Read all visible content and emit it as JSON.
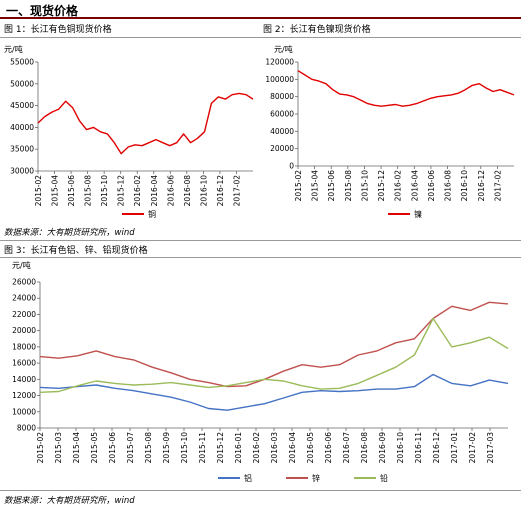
{
  "section_title": "一、现货价格",
  "captions": {
    "fig1": "图 1：长江有色铜现货价格",
    "fig2": "图 2：长江有色镍现货价格",
    "fig3": "图 3：长江有色铝、锌、铅现货价格"
  },
  "source_text": "数据来源：大有期货研究所，wind",
  "chart_data": [
    {
      "type": "line",
      "ylabel": "元/吨",
      "ylim": [
        30000,
        55000
      ],
      "yticks": [
        30000,
        35000,
        40000,
        45000,
        50000,
        55000
      ],
      "x_ticks": [
        "2015-02",
        "2015-04",
        "2015-06",
        "2015-08",
        "2015-10",
        "2015-12",
        "2016-02",
        "2016-04",
        "2016-06",
        "2016-08",
        "2016-10",
        "2016-12",
        "2017-02"
      ],
      "grid": false,
      "legend": "bottom",
      "series": [
        {
          "name": "铜",
          "color": "#e00000",
          "values": [
            41000,
            42500,
            43500,
            44200,
            46000,
            44500,
            41500,
            39500,
            40000,
            39000,
            38500,
            36500,
            34000,
            35500,
            36000,
            35800,
            36500,
            37200,
            36500,
            35800,
            36500,
            38500,
            36500,
            37500,
            39000,
            45500,
            47000,
            46500,
            47500,
            47800,
            47500,
            46500
          ]
        }
      ]
    },
    {
      "type": "line",
      "ylabel": "元/吨",
      "ylim": [
        0,
        120000
      ],
      "yticks": [
        0,
        20000,
        40000,
        60000,
        80000,
        100000,
        120000
      ],
      "x_ticks": [
        "2015-02",
        "2015-04",
        "2015-06",
        "2015-08",
        "2015-10",
        "2015-12",
        "2016-02",
        "2016-04",
        "2016-06",
        "2016-08",
        "2016-10",
        "2016-12",
        "2017-02"
      ],
      "grid": false,
      "legend": "bottom",
      "series": [
        {
          "name": "镍",
          "color": "#e00000",
          "values": [
            110000,
            105000,
            100000,
            98000,
            95000,
            88000,
            83000,
            82000,
            80000,
            76000,
            72000,
            70000,
            69000,
            70000,
            71000,
            69000,
            70000,
            72000,
            75000,
            78000,
            80000,
            81000,
            82000,
            84000,
            88000,
            93000,
            95000,
            90000,
            86000,
            88000,
            85000,
            82000
          ]
        }
      ]
    },
    {
      "type": "line",
      "ylabel": "元/吨",
      "ylim": [
        8000,
        26000
      ],
      "yticks": [
        8000,
        10000,
        12000,
        14000,
        16000,
        18000,
        20000,
        22000,
        24000,
        26000
      ],
      "x_ticks": [
        "2015-02",
        "2015-03",
        "2015-04",
        "2015-05",
        "2015-06",
        "2015-07",
        "2015-08",
        "2015-09",
        "2015-10",
        "2015-11",
        "2015-12",
        "2016-01",
        "2016-02",
        "2016-03",
        "2016-04",
        "2016-05",
        "2016-06",
        "2016-07",
        "2016-08",
        "2016-09",
        "2016-10",
        "2016-11",
        "2016-12",
        "2017-01",
        "2017-02",
        "2017-03"
      ],
      "grid": false,
      "legend": "bottom",
      "series": [
        {
          "name": "铝",
          "color": "#4472c4",
          "values": [
            13000,
            12900,
            13100,
            13300,
            12900,
            12600,
            12200,
            11800,
            11200,
            10400,
            10200,
            10600,
            11000,
            11700,
            12400,
            12600,
            12500,
            12600,
            12800,
            12800,
            13100,
            14600,
            13500,
            13200,
            13900,
            13500
          ]
        },
        {
          "name": "锌",
          "color": "#c0504d",
          "values": [
            16800,
            16600,
            16900,
            17500,
            16800,
            16400,
            15500,
            14800,
            14000,
            13600,
            13100,
            13200,
            14000,
            15000,
            15800,
            15500,
            15800,
            17000,
            17500,
            18500,
            19000,
            21500,
            23000,
            22500,
            23500,
            23300
          ]
        },
        {
          "name": "铅",
          "color": "#9bbb59",
          "values": [
            12400,
            12500,
            13200,
            13800,
            13500,
            13300,
            13400,
            13600,
            13300,
            13000,
            13200,
            13600,
            14000,
            13800,
            13200,
            12800,
            12900,
            13500,
            14500,
            15500,
            17000,
            21500,
            18000,
            18500,
            19200,
            17800
          ]
        }
      ]
    }
  ]
}
